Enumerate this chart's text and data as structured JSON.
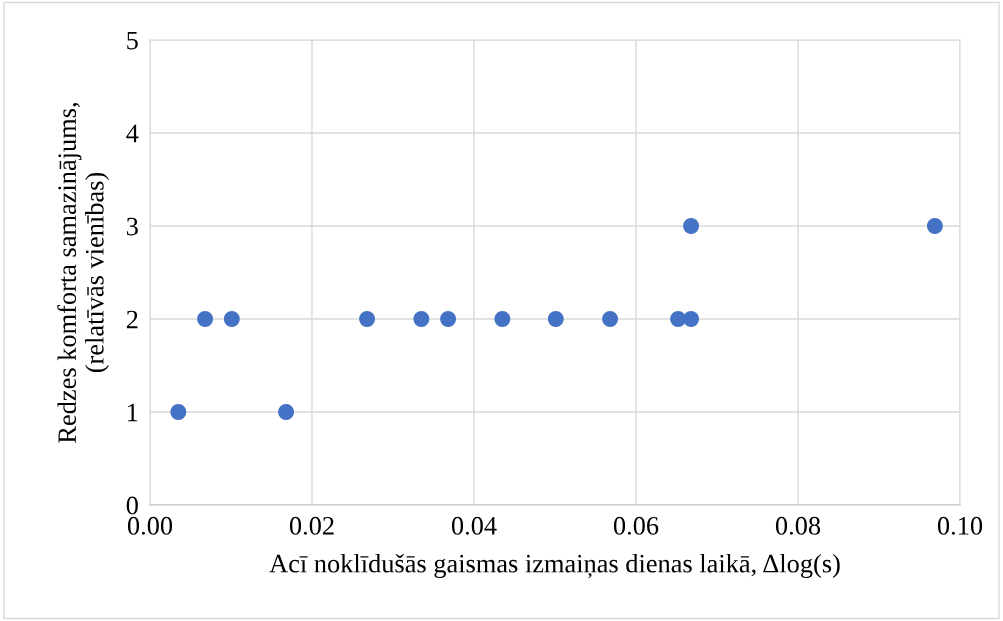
{
  "chart_data": {
    "type": "scatter",
    "xlabel": "Acī noklīdušās gaismas izmaiņas dienas laikā, Δlog(s)",
    "ylabel": "Redzes komforta samazinājums,\n(relatīvās vienības)",
    "x": [
      0.0035,
      0.0068,
      0.0101,
      0.0168,
      0.0268,
      0.0335,
      0.0368,
      0.0435,
      0.0501,
      0.0568,
      0.0652,
      0.0668,
      0.0668,
      0.0969
    ],
    "series": [
      {
        "color": "#4472c4",
        "values": [
          1,
          2,
          2,
          1,
          2,
          2,
          2,
          2,
          2,
          2,
          2,
          2,
          3,
          3
        ]
      }
    ],
    "xlim": [
      0,
      0.1
    ],
    "xticks": [
      {
        "value": 0,
        "label": "0.00"
      },
      {
        "value": 0.02,
        "label": "0.02"
      },
      {
        "value": 0.04,
        "label": "0.04"
      },
      {
        "value": 0.06,
        "label": "0.06"
      },
      {
        "value": 0.08,
        "label": "0.08"
      },
      {
        "value": 0.1,
        "label": "0.10"
      }
    ],
    "ylim": [
      0,
      5
    ],
    "yticks": [
      0,
      1,
      2,
      3,
      4,
      5
    ],
    "grid": true,
    "marker": "circle"
  }
}
